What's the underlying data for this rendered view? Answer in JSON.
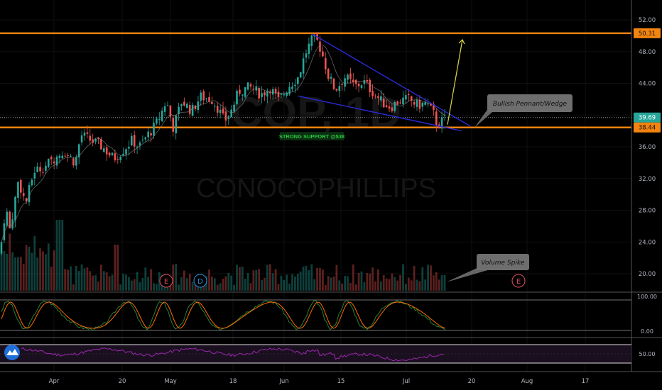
{
  "chart_data": {
    "type": "candlestick",
    "watermark": {
      "symbol": "COP, 1D",
      "name": "CONOCOPHILLIPS"
    },
    "x_axis": {
      "labels": [
        "Apr",
        "20",
        "May",
        "18",
        "Jun",
        "15",
        "Jul",
        "20",
        "Aug",
        "17"
      ]
    },
    "price_axis": {
      "ticks": [
        "52.00",
        "48.00",
        "44.00",
        "40.00",
        "36.00",
        "32.00",
        "28.00",
        "24.00",
        "20.00"
      ],
      "range": [
        18.4,
        52.8
      ],
      "badges": [
        {
          "text": "50.31",
          "value": 50.31,
          "color": "#f2840f"
        },
        {
          "text": "39.69",
          "value": 39.69,
          "color": "#26a69a"
        },
        {
          "text": "38.44",
          "value": 38.44,
          "color": "#f2840f"
        }
      ]
    },
    "lines": {
      "resistance": 50.31,
      "support": 38.44,
      "last_price": 39.69,
      "line_color": "#f2840f"
    },
    "annotations": {
      "support_label": "STRONG SUPPORT @$38",
      "support_label_color": "#27c93f",
      "pattern_label": "Bullish Pennant/Wedge",
      "volume_label": "Volume Spike",
      "events": [
        {
          "letter": "E",
          "kind": "earnings",
          "color": "#e05060"
        },
        {
          "letter": "D",
          "kind": "dividend",
          "color": "#2d8fd8"
        },
        {
          "letter": "E",
          "kind": "earnings",
          "color": "#e05060"
        }
      ]
    },
    "wedge": {
      "upper": [
        [
          0,
          50.2
        ],
        [
          1,
          38.6
        ]
      ],
      "lower": [
        [
          0,
          42.4
        ],
        [
          1,
          38.0
        ]
      ],
      "color": "#2a2ad8"
    },
    "projection": {
      "from": 38.8,
      "to": 49.5,
      "color": "#d8d84a"
    },
    "stoch_axis": {
      "ticks": [
        "100.00",
        "0.00"
      ],
      "range": [
        0,
        100
      ]
    },
    "rsi_axis": {
      "ticks": [
        "50.00"
      ],
      "range": [
        0,
        100
      ],
      "band": [
        30,
        70
      ]
    },
    "colors": {
      "up": "#26a69a",
      "down": "#ef5350",
      "rsi": "#9c27b0",
      "stoch_k": "#2e7d32",
      "stoch_d": "#ff6d00"
    }
  }
}
